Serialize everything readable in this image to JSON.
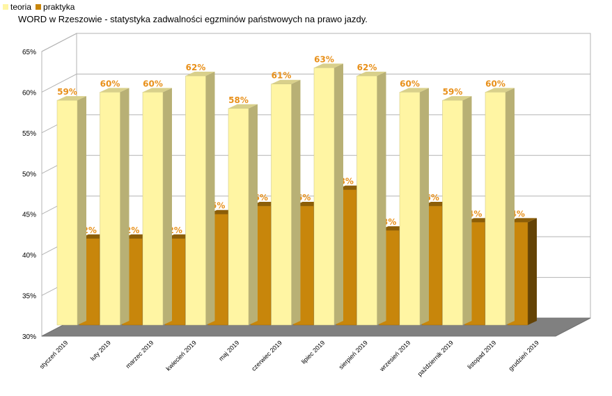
{
  "chart_data": {
    "type": "bar",
    "title": "WORD w Rzeszowie - statystyka zadwalności egzminów państwowych na prawo jazdy.",
    "categories": [
      "styczeń 2019",
      "luty 2019",
      "marzec 2019",
      "kwiecień 2019",
      "maj 2019",
      "czerwiec 2019",
      "lipiec 2019",
      "sierpień 2019",
      "wrzesień 2019",
      "październik 2019",
      "listopad 2019",
      "grudzień 2019"
    ],
    "series": [
      {
        "name": "teoria",
        "color": "#FFF5A3",
        "values": [
          0.59,
          0.6,
          0.6,
          0.62,
          0.58,
          0.61,
          0.63,
          0.62,
          0.6,
          0.59,
          0.6,
          null
        ],
        "labels": [
          "59%",
          "60%",
          "60%",
          "62%",
          "58%",
          "61%",
          "63%",
          "62%",
          "60%",
          "59%",
          "60%",
          ""
        ]
      },
      {
        "name": "praktyka",
        "color": "#C8860B",
        "values": [
          0.42,
          0.42,
          0.42,
          0.45,
          0.46,
          0.46,
          0.48,
          0.43,
          0.46,
          0.44,
          0.44,
          null
        ],
        "labels": [
          "42%",
          "42%",
          "42%",
          "45%",
          "46%",
          "46%",
          "48%",
          "43%",
          "46%",
          "44%",
          "44%",
          ""
        ]
      }
    ],
    "ylim": [
      0.3,
      0.65
    ],
    "yticks": [
      "30%",
      "35%",
      "40%",
      "45%",
      "50%",
      "55%",
      "60%",
      "65%"
    ],
    "xlabel": "",
    "ylabel": "",
    "grid": true,
    "legend_position": "top-left",
    "label_color": "#E8901A"
  }
}
